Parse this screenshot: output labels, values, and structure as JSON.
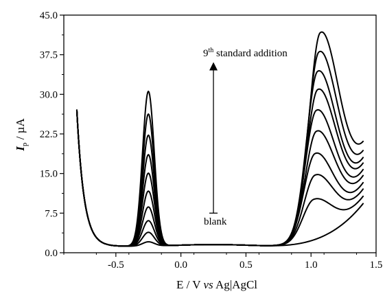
{
  "chart_data": {
    "type": "line",
    "xlabel": {
      "prefix": "E / V ",
      "italic": "vs",
      "suffix": " Ag|AgCl"
    },
    "ylabel": {
      "symbol": "I",
      "subscript": "p",
      "suffix": " / µA"
    },
    "xlim": [
      -0.9,
      1.5
    ],
    "ylim": [
      0,
      45
    ],
    "x_ticks": [
      -0.5,
      0.0,
      0.5,
      1.0,
      1.5
    ],
    "x_tick_labels": [
      "-0.5",
      "0.0",
      "0.5",
      "1.0",
      "1.5"
    ],
    "y_ticks": [
      0,
      7.5,
      15,
      22.5,
      30,
      37.5,
      45
    ],
    "y_tick_labels": [
      "0.0",
      "7.5",
      "15.0",
      "22.5",
      "30.0",
      "37.5",
      "45.0"
    ],
    "grid": false,
    "legend": "none",
    "annotations": {
      "top": {
        "number": "9",
        "superscript": "th",
        "text": " standard addition"
      },
      "bottom": "blank",
      "arrow": {
        "x": 0.25,
        "y_from": 7.5,
        "y_to": 35.7
      }
    },
    "x_range_scan": [
      -0.8,
      1.4
    ],
    "peak1_x": -0.25,
    "peak1_heights": [
      0.8,
      2.6,
      4.8,
      7.4,
      10.4,
      13.8,
      17.3,
      21.0,
      25.0,
      29.3
    ],
    "peak2_x": [
      0.0,
      1.02,
      1.03,
      1.03,
      1.04,
      1.04,
      1.05,
      1.05,
      1.06,
      1.07
    ],
    "peak2_heights": [
      0.0,
      7.5,
      11.8,
      15.7,
      19.6,
      23.4,
      27.0,
      30.3,
      33.6,
      36.8
    ],
    "end_values": [
      9.5,
      10.7,
      11.9,
      13.0,
      14.1,
      15.1,
      16.0,
      16.9,
      17.8,
      19.0
    ],
    "series": [
      {
        "level": 0
      },
      {
        "level": 1
      },
      {
        "level": 2
      },
      {
        "level": 3
      },
      {
        "level": 4
      },
      {
        "level": 5
      },
      {
        "level": 6
      },
      {
        "level": 7
      },
      {
        "level": 8
      },
      {
        "level": 9
      }
    ]
  }
}
